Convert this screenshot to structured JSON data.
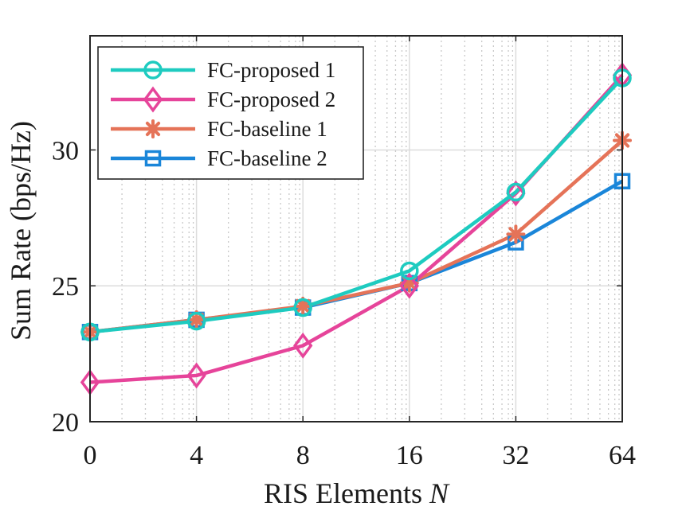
{
  "chart_data": {
    "type": "line",
    "title": "",
    "xlabel": "RIS Elements",
    "xlabel_var": "N",
    "ylabel": "Sum Rate (bps/Hz)",
    "x_ticks": [
      "0",
      "4",
      "8",
      "16",
      "32",
      "64"
    ],
    "y_ticks": [
      "20",
      "25",
      "30"
    ],
    "ylim": [
      20,
      34.2
    ],
    "grid": true,
    "legend_position": "top-left",
    "series": [
      {
        "name": "FC-proposed 1",
        "color": "#1ECBC0",
        "marker": "circle",
        "values": [
          23.3,
          23.7,
          24.2,
          25.55,
          28.45,
          32.65
        ]
      },
      {
        "name": "FC-proposed 2",
        "color": "#E6449A",
        "marker": "diamond",
        "values": [
          21.45,
          21.7,
          22.8,
          25.0,
          28.4,
          32.75
        ]
      },
      {
        "name": "FC-baseline 1",
        "color": "#E57358",
        "marker": "asterisk",
        "values": [
          23.3,
          23.75,
          24.25,
          25.1,
          26.9,
          30.35
        ]
      },
      {
        "name": "FC-baseline 2",
        "color": "#1A86D9",
        "marker": "square",
        "values": [
          23.3,
          23.75,
          24.2,
          25.1,
          26.6,
          28.85
        ]
      }
    ]
  }
}
